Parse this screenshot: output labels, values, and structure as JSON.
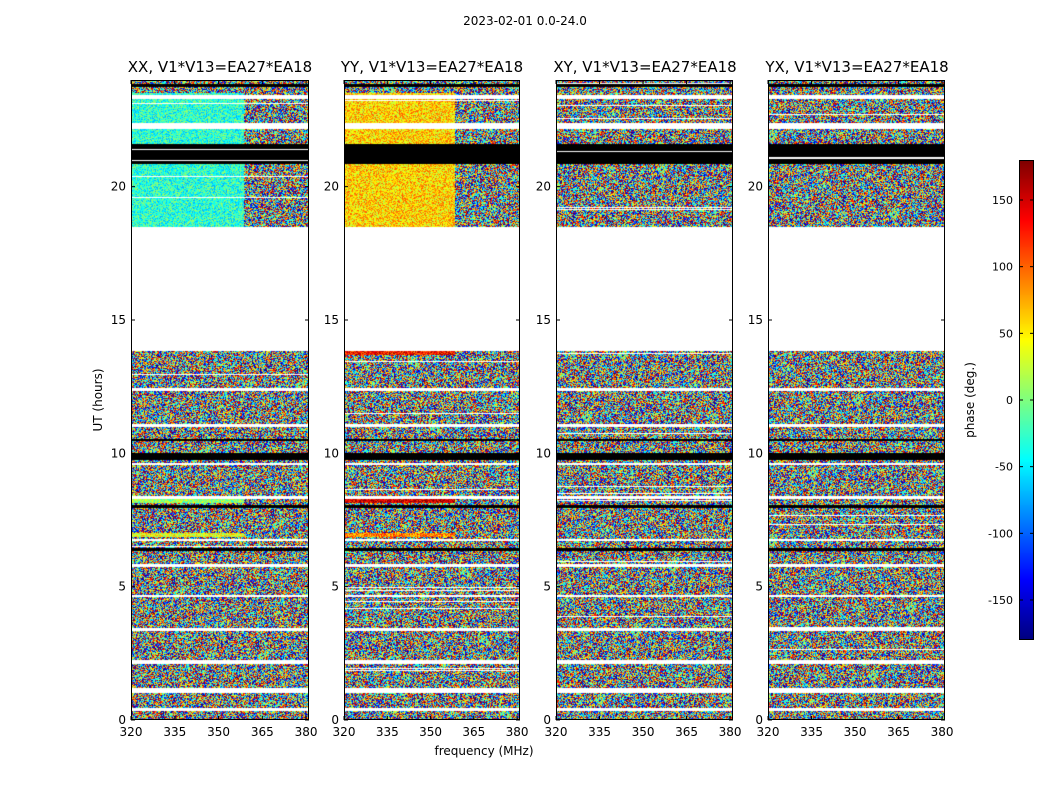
{
  "figure": {
    "title": "2023-02-01 0.0-24.0",
    "ylabel": "UT (hours)",
    "xlabel": "frequency (MHz)",
    "colorbar_label": "phase (deg.)"
  },
  "chart_data": {
    "type": "heatmap",
    "colormap": "jet",
    "colormap_stops": [
      "#00007f",
      "#0000ff",
      "#007fff",
      "#00ffff",
      "#7fff7f",
      "#ffff00",
      "#ff7f00",
      "#ff0000",
      "#7f0000"
    ],
    "xlim": [
      320,
      381
    ],
    "ylim": [
      0,
      24
    ],
    "xticks": [
      320,
      335,
      350,
      365,
      380
    ],
    "yticks": [
      0,
      5,
      10,
      15,
      20
    ],
    "colorbar": {
      "vmin": -180,
      "vmax": 180,
      "ticks": [
        -150,
        -100,
        -50,
        0,
        50,
        100,
        150
      ]
    },
    "flagged_white_ut": [
      [
        13.85,
        18.5
      ],
      [
        22.15,
        22.4
      ],
      [
        23.3,
        23.45
      ],
      [
        9.55,
        9.65
      ],
      [
        8.3,
        8.4
      ],
      [
        6.7,
        6.8
      ],
      [
        5.75,
        5.85
      ],
      [
        3.35,
        3.45
      ],
      [
        2.1,
        2.25
      ],
      [
        1.0,
        1.2
      ],
      [
        0.35,
        0.45
      ],
      [
        12.35,
        12.45
      ],
      [
        11.0,
        11.1
      ],
      [
        4.6,
        4.7
      ]
    ],
    "flagged_black_ut": [
      [
        20.85,
        21.6
      ],
      [
        9.75,
        10.0
      ],
      [
        7.95,
        8.05
      ],
      [
        6.35,
        6.45
      ],
      [
        10.45,
        10.55
      ],
      [
        23.75,
        23.85
      ]
    ],
    "panels": [
      {
        "title": "XX, V1*V13=EA27*EA18",
        "coherent": [
          [
            18.5,
            23.5,
            -30
          ]
        ],
        "coherent_bands": [
          [
            8.15,
            8.3,
            10
          ],
          [
            6.85,
            7.0,
            40
          ]
        ]
      },
      {
        "title": "YY, V1*V13=EA27*EA18",
        "coherent": [
          [
            18.5,
            23.5,
            60
          ]
        ],
        "coherent_bands": [
          [
            8.15,
            8.3,
            150
          ],
          [
            6.85,
            7.0,
            90
          ],
          [
            13.7,
            13.85,
            130
          ]
        ]
      },
      {
        "title": "XY, V1*V13=EA27*EA18",
        "coherent": [],
        "coherent_bands": []
      },
      {
        "title": "YX, V1*V13=EA27*EA18",
        "coherent": [],
        "coherent_bands": []
      }
    ]
  }
}
